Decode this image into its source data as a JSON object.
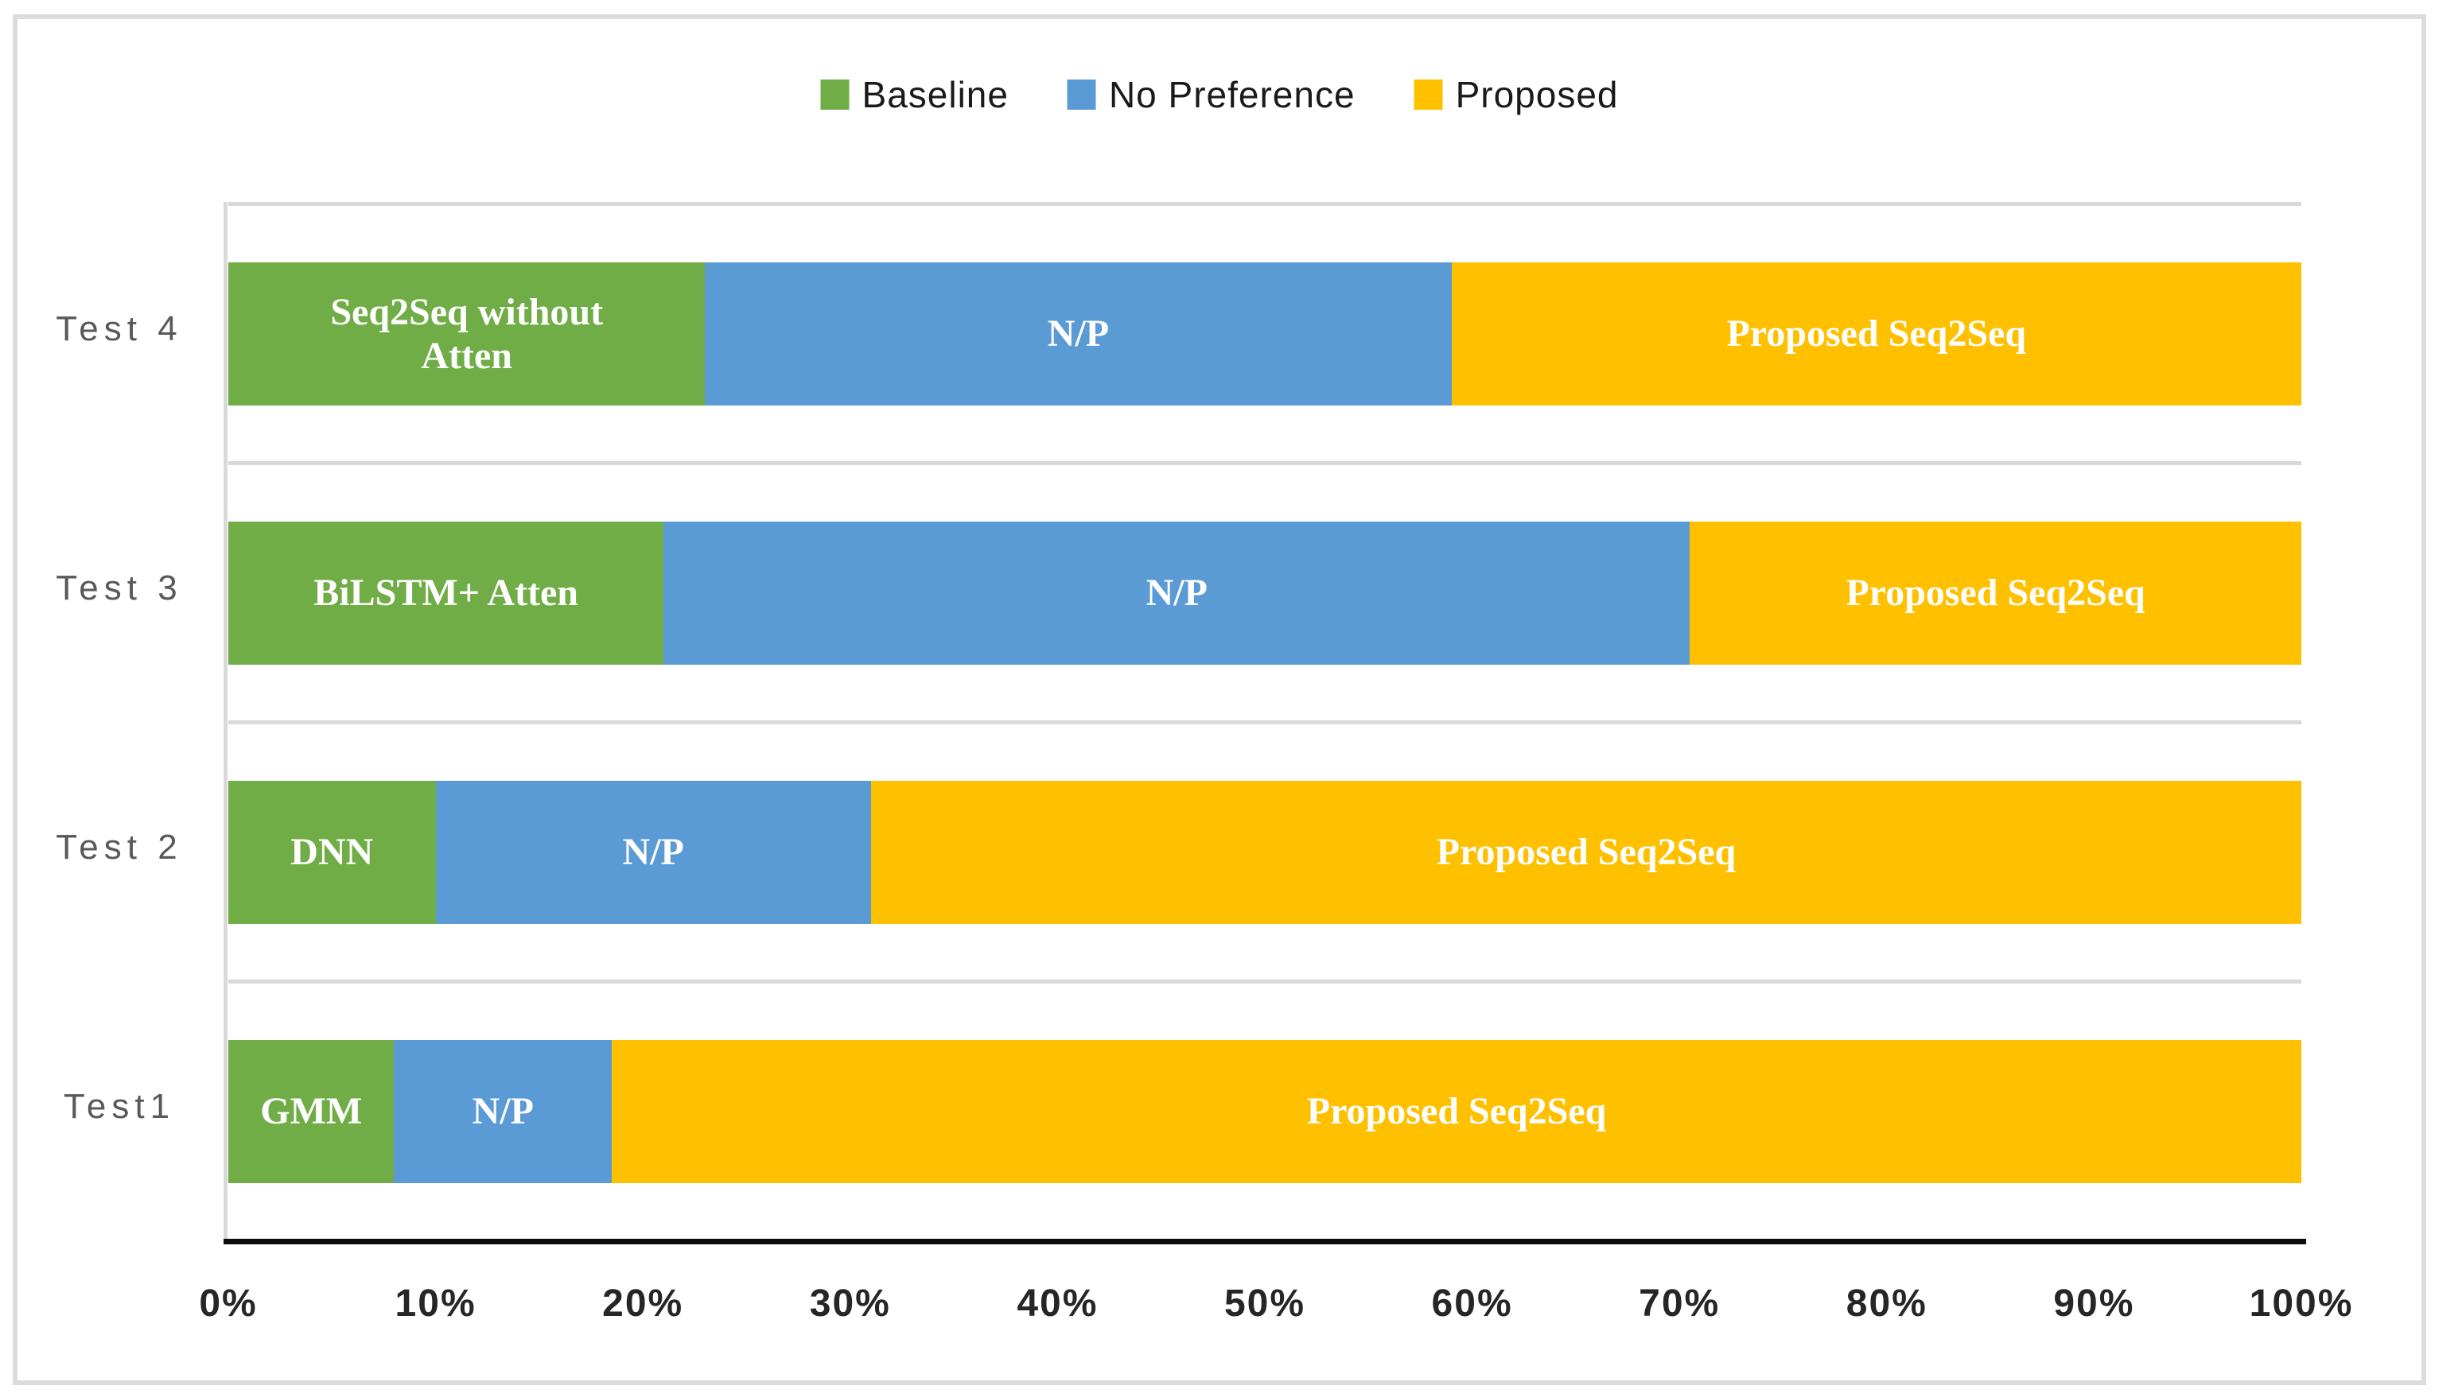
{
  "chart_data": {
    "type": "bar",
    "subtype": "horizontal-stacked-percentage",
    "title": "",
    "xlabel": "",
    "ylabel": "",
    "xlim": [
      0,
      100
    ],
    "grid": "category-band-separators",
    "legend_position": "top-center",
    "legend": [
      {
        "label": "Baseline",
        "color": "#70AD47"
      },
      {
        "label": "No Preference",
        "color": "#5B9BD5"
      },
      {
        "label": "Proposed",
        "color": "#FFC000"
      }
    ],
    "series_colors": {
      "Baseline": "#70AD47",
      "No Preference": "#5B9BD5",
      "Proposed": "#FFC000"
    },
    "categories_top_to_bottom": [
      "Test 4",
      "Test 3",
      "Test 2",
      "Test1"
    ],
    "x_ticks": [
      "0%",
      "10%",
      "20%",
      "30%",
      "40%",
      "50%",
      "60%",
      "70%",
      "80%",
      "90%",
      "100%"
    ],
    "rows": [
      {
        "category": "Test 4",
        "segments": [
          {
            "series": "Baseline",
            "value": 23,
            "label": "Seq2Seq  without\nAtten"
          },
          {
            "series": "No Preference",
            "value": 36,
            "label": "N/P"
          },
          {
            "series": "Proposed",
            "value": 41,
            "label": "Proposed Seq2Seq"
          }
        ]
      },
      {
        "category": "Test 3",
        "segments": [
          {
            "series": "Baseline",
            "value": 21,
            "label": "BiLSTM+ Atten"
          },
          {
            "series": "No Preference",
            "value": 49.5,
            "label": "N/P"
          },
          {
            "series": "Proposed",
            "value": 29.5,
            "label": "Proposed Seq2Seq"
          }
        ]
      },
      {
        "category": "Test 2",
        "segments": [
          {
            "series": "Baseline",
            "value": 10,
            "label": "DNN"
          },
          {
            "series": "No Preference",
            "value": 21,
            "label": "N/P"
          },
          {
            "series": "Proposed",
            "value": 69,
            "label": "Proposed Seq2Seq"
          }
        ]
      },
      {
        "category": "Test1",
        "segments": [
          {
            "series": "Baseline",
            "value": 8,
            "label": "GMM"
          },
          {
            "series": "No Preference",
            "value": 10.5,
            "label": "N/P"
          },
          {
            "series": "Proposed",
            "value": 81.5,
            "label": "Proposed Seq2Seq"
          }
        ]
      }
    ]
  },
  "colors": {
    "frame_border": "#DCDCDC",
    "band_separator": "#D9D9D9",
    "axis_line": "#0D0D0D",
    "category_text": "#595959",
    "tick_text": "#262626",
    "bar_label_text": "#FFFFFF"
  }
}
